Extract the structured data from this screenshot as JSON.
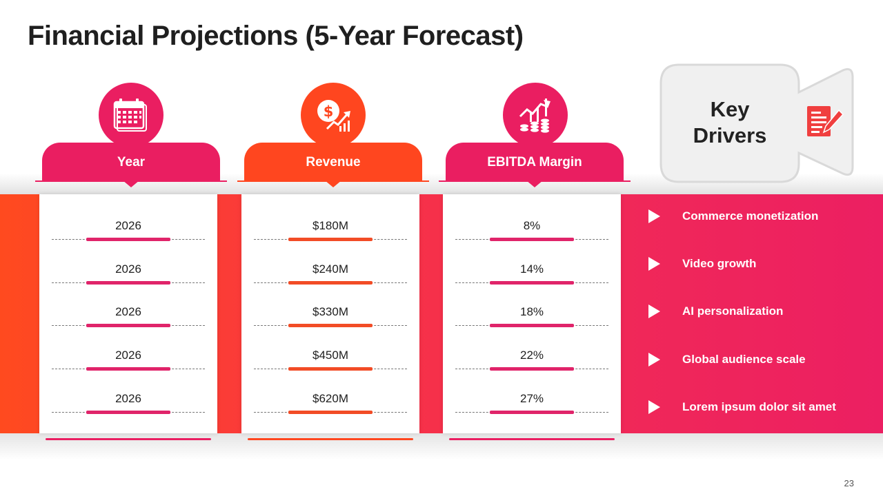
{
  "slide": {
    "title": "Financial Projections (5-Year Forecast)",
    "page_number": "23"
  },
  "colors": {
    "pink": "#e91e63",
    "orange": "#ff4a1f",
    "band_start": "#ff4a1f",
    "band_end": "#ec1f62"
  },
  "columns": [
    {
      "header": "Year",
      "icon": "calendar-icon",
      "color": "#ea1e61",
      "values": [
        "2026",
        "2026",
        "2026",
        "2026",
        "2026"
      ]
    },
    {
      "header": "Revenue",
      "icon": "dollar-growth-icon",
      "color": "#ff461f",
      "values": [
        "$180M",
        "$240M",
        "$330M",
        "$450M",
        "$620M"
      ]
    },
    {
      "header": "EBITDA Margin",
      "icon": "coins-chart-icon",
      "color": "#ea1e61",
      "values": [
        "8%",
        "14%",
        "18%",
        "22%",
        "27%"
      ]
    }
  ],
  "key_drivers": {
    "title_line1": "Key",
    "title_line2": "Drivers",
    "icon": "document-pen-icon",
    "items": [
      "Commerce monetization",
      "Video growth",
      "AI personalization",
      "Global audience scale",
      "Lorem ipsum dolor sit amet"
    ]
  }
}
